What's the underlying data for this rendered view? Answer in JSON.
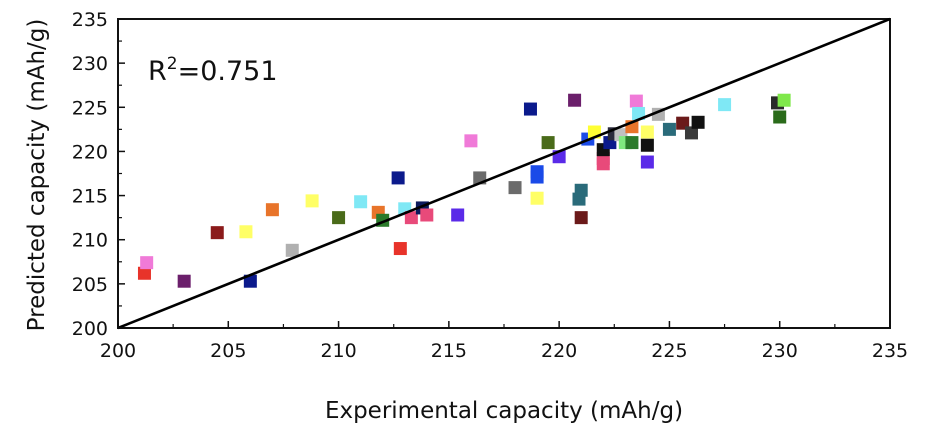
{
  "chart_data": {
    "type": "scatter",
    "title": "",
    "xlabel": "Experimental capacity (mAh/g)",
    "ylabel": "Predicted capacity (mAh/g)",
    "xlim": [
      200,
      235
    ],
    "ylim": [
      200,
      235
    ],
    "xticks": [
      200,
      205,
      210,
      215,
      220,
      225,
      230,
      235
    ],
    "yticks": [
      200,
      205,
      210,
      215,
      220,
      225,
      230,
      235
    ],
    "annotation": {
      "label": "R",
      "superscript": "2",
      "value": "=0.751"
    },
    "reference_line": {
      "x": [
        200,
        235
      ],
      "y": [
        200,
        235
      ],
      "color": "#000000"
    },
    "grid": false,
    "points": [
      {
        "x": 201.2,
        "y": 206.2,
        "color": "#e8332a"
      },
      {
        "x": 201.3,
        "y": 207.4,
        "color": "#f07ad8"
      },
      {
        "x": 203.0,
        "y": 205.3,
        "color": "#6b1f6b"
      },
      {
        "x": 204.5,
        "y": 210.8,
        "color": "#8b1a1a"
      },
      {
        "x": 205.8,
        "y": 210.9,
        "color": "#ffff66"
      },
      {
        "x": 206.0,
        "y": 205.3,
        "color": "#0b1a8c"
      },
      {
        "x": 207.0,
        "y": 213.4,
        "color": "#e8742a"
      },
      {
        "x": 207.9,
        "y": 208.8,
        "color": "#b0b0b0"
      },
      {
        "x": 208.8,
        "y": 214.4,
        "color": "#ffff66"
      },
      {
        "x": 210.0,
        "y": 212.5,
        "color": "#4a6b1a"
      },
      {
        "x": 211.0,
        "y": 214.3,
        "color": "#7fe8f5"
      },
      {
        "x": 211.8,
        "y": 213.1,
        "color": "#e8742a"
      },
      {
        "x": 212.0,
        "y": 212.2,
        "color": "#2a7a2a"
      },
      {
        "x": 212.8,
        "y": 209.0,
        "color": "#e8332a"
      },
      {
        "x": 212.7,
        "y": 217.0,
        "color": "#0b1a8c"
      },
      {
        "x": 213.0,
        "y": 213.5,
        "color": "#7fe8f5"
      },
      {
        "x": 213.3,
        "y": 212.5,
        "color": "#e84a7a"
      },
      {
        "x": 213.8,
        "y": 213.6,
        "color": "#0b1a5c"
      },
      {
        "x": 214.0,
        "y": 212.8,
        "color": "#e84a7a"
      },
      {
        "x": 215.4,
        "y": 212.8,
        "color": "#5a2ae8"
      },
      {
        "x": 216.0,
        "y": 221.2,
        "color": "#f07ad8"
      },
      {
        "x": 216.4,
        "y": 217.0,
        "color": "#6b6b6b"
      },
      {
        "x": 218.0,
        "y": 215.9,
        "color": "#6b6b6b"
      },
      {
        "x": 218.7,
        "y": 224.8,
        "color": "#0b1a8c"
      },
      {
        "x": 219.0,
        "y": 217.1,
        "color": "#1a4ae8"
      },
      {
        "x": 219.0,
        "y": 217.7,
        "color": "#1a4ae8"
      },
      {
        "x": 219.0,
        "y": 214.7,
        "color": "#ffff66"
      },
      {
        "x": 219.5,
        "y": 221.0,
        "color": "#4a6b1a"
      },
      {
        "x": 220.0,
        "y": 219.4,
        "color": "#5a2ae8"
      },
      {
        "x": 220.7,
        "y": 225.8,
        "color": "#6b1f6b"
      },
      {
        "x": 220.9,
        "y": 214.6,
        "color": "#2a6b7a"
      },
      {
        "x": 221.0,
        "y": 215.6,
        "color": "#2a6b7a"
      },
      {
        "x": 221.0,
        "y": 212.5,
        "color": "#6b1a1a"
      },
      {
        "x": 221.3,
        "y": 221.4,
        "color": "#1a4ae8"
      },
      {
        "x": 221.6,
        "y": 222.2,
        "color": "#ffff33"
      },
      {
        "x": 222.0,
        "y": 218.6,
        "color": "#e84a7a"
      },
      {
        "x": 222.0,
        "y": 219.2,
        "color": "#e84a7a"
      },
      {
        "x": 222.0,
        "y": 220.2,
        "color": "#111111"
      },
      {
        "x": 222.3,
        "y": 221.0,
        "color": "#0b1a8c"
      },
      {
        "x": 222.5,
        "y": 222.0,
        "color": "#2a2a3a"
      },
      {
        "x": 222.8,
        "y": 221.9,
        "color": "#c0c0c0"
      },
      {
        "x": 223.0,
        "y": 221.0,
        "color": "#7fe87f"
      },
      {
        "x": 223.3,
        "y": 222.8,
        "color": "#e8742a"
      },
      {
        "x": 223.3,
        "y": 221.0,
        "color": "#2a7a2a"
      },
      {
        "x": 223.5,
        "y": 225.7,
        "color": "#f07ad8"
      },
      {
        "x": 223.6,
        "y": 224.3,
        "color": "#7fe8f5"
      },
      {
        "x": 224.0,
        "y": 222.2,
        "color": "#ffff66"
      },
      {
        "x": 224.0,
        "y": 220.7,
        "color": "#111111"
      },
      {
        "x": 224.0,
        "y": 218.8,
        "color": "#5a2ae8"
      },
      {
        "x": 224.5,
        "y": 224.2,
        "color": "#b0b0b0"
      },
      {
        "x": 225.0,
        "y": 222.5,
        "color": "#2a6b7a"
      },
      {
        "x": 225.6,
        "y": 223.2,
        "color": "#6b1a1a"
      },
      {
        "x": 226.0,
        "y": 222.1,
        "color": "#3a3a3a"
      },
      {
        "x": 226.3,
        "y": 223.3,
        "color": "#111111"
      },
      {
        "x": 227.5,
        "y": 225.3,
        "color": "#7fe8f5"
      },
      {
        "x": 229.9,
        "y": 225.5,
        "color": "#2a2a2a"
      },
      {
        "x": 230.0,
        "y": 223.9,
        "color": "#2a6b1a"
      },
      {
        "x": 230.2,
        "y": 225.8,
        "color": "#7fe84a"
      }
    ]
  }
}
